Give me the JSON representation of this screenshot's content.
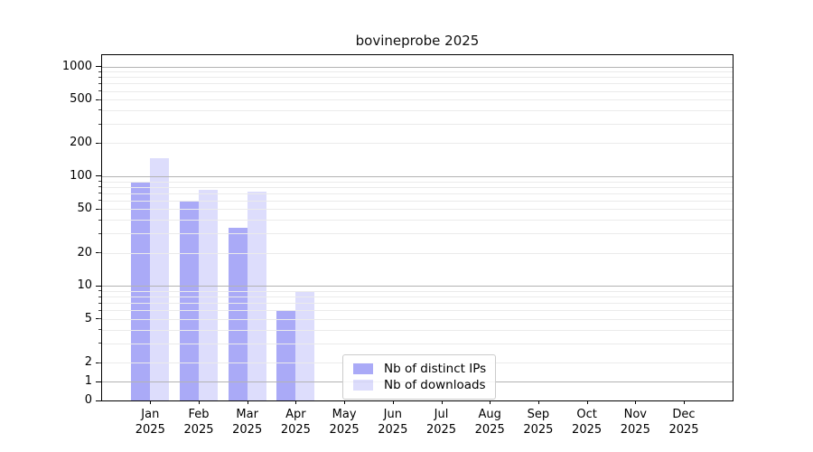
{
  "chart_data": {
    "type": "bar",
    "title": "bovineprobe 2025",
    "months": [
      "Jan",
      "Feb",
      "Mar",
      "Apr",
      "May",
      "Jun",
      "Jul",
      "Aug",
      "Sep",
      "Oct",
      "Nov",
      "Dec"
    ],
    "year": "2025",
    "series": [
      {
        "name": "Nb of distinct IPs",
        "color": "rgba(100,100,240,0.55)",
        "values": [
          87,
          59,
          34,
          6,
          0,
          0,
          0,
          0,
          0,
          0,
          0,
          0
        ]
      },
      {
        "name": "Nb of downloads",
        "color": "rgba(100,100,240,0.22)",
        "values": [
          146,
          75,
          73,
          9,
          0,
          0,
          0,
          0,
          0,
          0,
          0,
          0
        ]
      }
    ],
    "yscale": "symlog",
    "ylim": [
      0,
      1270
    ],
    "yticks": [
      0,
      1,
      2,
      5,
      10,
      20,
      50,
      100,
      200,
      500,
      1000
    ],
    "grid": {
      "major_lines": [
        1,
        10,
        100,
        1000
      ],
      "minor_subs": [
        2,
        3,
        4,
        5,
        6,
        7,
        8,
        9
      ],
      "orientation": "horizontal"
    },
    "legend_position": "lower-center-inside",
    "colors": {
      "bar_dark_blended": "#a9a9f2",
      "bar_light_blended": "#dcdcf8",
      "grid_major": "#b3b3b3",
      "grid_minor": "#ebebeb"
    }
  }
}
